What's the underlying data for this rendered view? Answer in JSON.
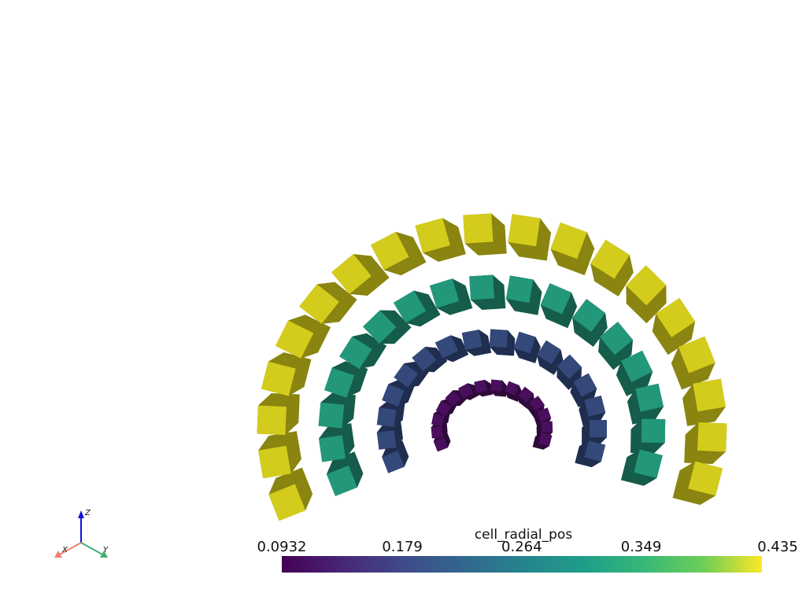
{
  "scalar_bar": {
    "title": "cell_radial_pos",
    "lim": [
      0.0932,
      0.435
    ],
    "ticks": [
      0.0932,
      0.179,
      0.264,
      0.349,
      0.435
    ]
  },
  "axes": {
    "x_label": "X",
    "y_label": "Y",
    "z_label": "Z"
  }
}
